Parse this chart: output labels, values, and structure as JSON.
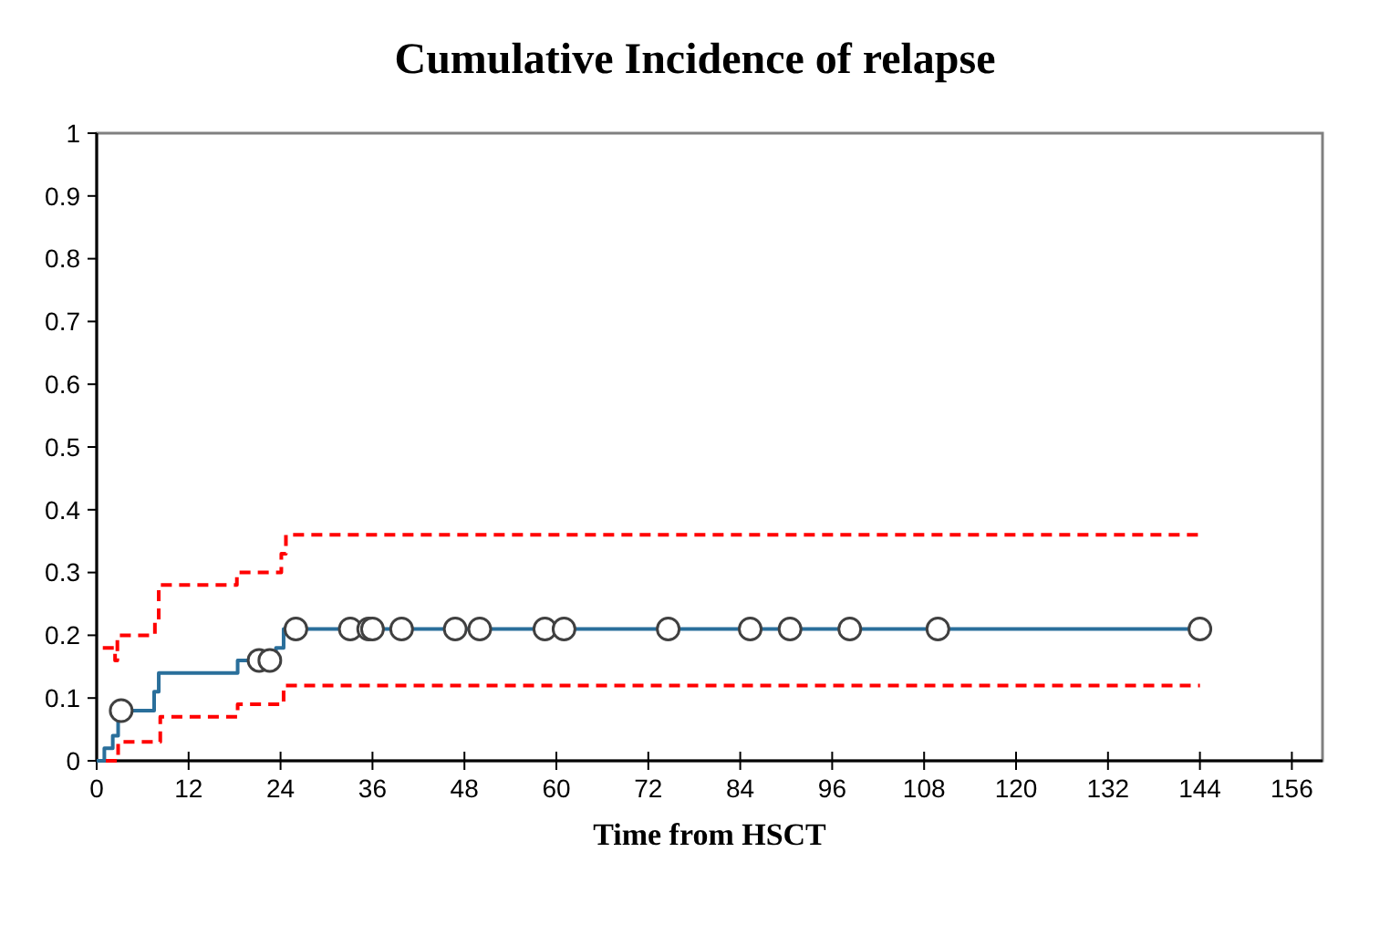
{
  "chart_data": {
    "type": "step",
    "title": "Cumulative Incidence of relapse",
    "xlabel": "Time from HSCT",
    "xlim": [
      0,
      160
    ],
    "xticks": [
      0,
      12,
      24,
      36,
      48,
      60,
      72,
      84,
      96,
      108,
      120,
      132,
      144,
      156
    ],
    "ylim": [
      0,
      1
    ],
    "yticks": [
      0,
      0.1,
      0.2,
      0.3,
      0.4,
      0.5,
      0.6,
      0.7,
      0.8,
      0.9,
      1
    ],
    "grid": false,
    "series": [
      {
        "color": "#2a6f9b",
        "line_style": "solid",
        "x": [
          0,
          1,
          2.1,
          2.8,
          7.5,
          8.1,
          18.4,
          23.4,
          24.4,
          144
        ],
        "values": [
          0,
          0.02,
          0.04,
          0.08,
          0.11,
          0.14,
          0.16,
          0.18,
          0.21,
          0.21
        ]
      },
      {
        "color": "#ff0000",
        "line_style": "dashed",
        "x": [
          0.8,
          2.4,
          2.7,
          7.6,
          8.1,
          18.3,
          24.1,
          24.7,
          144
        ],
        "values": [
          0.18,
          0.16,
          0.2,
          0.22,
          0.28,
          0.3,
          0.33,
          0.36,
          0.36
        ]
      },
      {
        "color": "#ff0000",
        "line_style": "dashed",
        "x": [
          1.2,
          2.8,
          8.3,
          18.4,
          24.4,
          144
        ],
        "values": [
          0,
          0.03,
          0.07,
          0.09,
          0.12,
          0.12
        ]
      },
      {
        "type": "scatter",
        "color": "#ffffff",
        "marker": "circle",
        "x": [
          3.2,
          21.2,
          22.6,
          26,
          33.1,
          35.5,
          36,
          39.8,
          46.8,
          50,
          58.5,
          61,
          74.6,
          85.3,
          90.5,
          98.3,
          109.8,
          144
        ],
        "values": [
          0.08,
          0.16,
          0.16,
          0.21,
          0.21,
          0.21,
          0.21,
          0.21,
          0.21,
          0.21,
          0.21,
          0.21,
          0.21,
          0.21,
          0.21,
          0.21,
          0.21,
          0.21
        ]
      }
    ]
  }
}
